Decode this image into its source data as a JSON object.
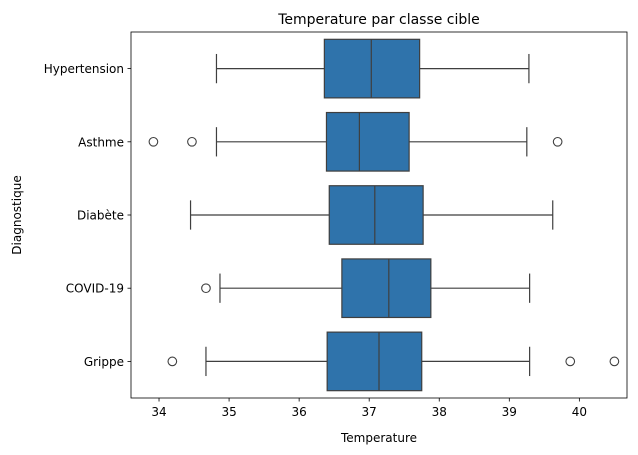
{
  "chart_data": {
    "type": "boxplot",
    "orientation": "horizontal",
    "title": "Temperature par classe cible",
    "xlabel": "Temperature",
    "ylabel": "Diagnostique",
    "xlim": [
      33.6,
      40.68
    ],
    "xticks": [
      34,
      35,
      36,
      37,
      38,
      39,
      40
    ],
    "legend": "none",
    "grid": false,
    "box_color": "#2f73ab",
    "line_color": "#3f3f3f",
    "categories": [
      "Hypertension",
      "Asthme",
      "Diabète",
      "COVID-19",
      "Grippe"
    ],
    "boxes": [
      {
        "label": "Hypertension",
        "whisker_low": 34.82,
        "q1": 36.36,
        "median": 37.03,
        "q3": 37.72,
        "whisker_high": 39.28,
        "outliers": []
      },
      {
        "label": "Asthme",
        "whisker_low": 34.82,
        "q1": 36.39,
        "median": 36.86,
        "q3": 37.57,
        "whisker_high": 39.25,
        "outliers": [
          33.92,
          34.47,
          39.69
        ]
      },
      {
        "label": "Diabète",
        "whisker_low": 34.45,
        "q1": 36.43,
        "median": 37.08,
        "q3": 37.77,
        "whisker_high": 39.62,
        "outliers": []
      },
      {
        "label": "COVID-19",
        "whisker_low": 34.87,
        "q1": 36.61,
        "median": 37.28,
        "q3": 37.88,
        "whisker_high": 39.29,
        "outliers": [
          34.67
        ]
      },
      {
        "label": "Grippe",
        "whisker_low": 34.67,
        "q1": 36.4,
        "median": 37.14,
        "q3": 37.75,
        "whisker_high": 39.29,
        "outliers": [
          34.19,
          39.87,
          40.5
        ]
      }
    ]
  }
}
